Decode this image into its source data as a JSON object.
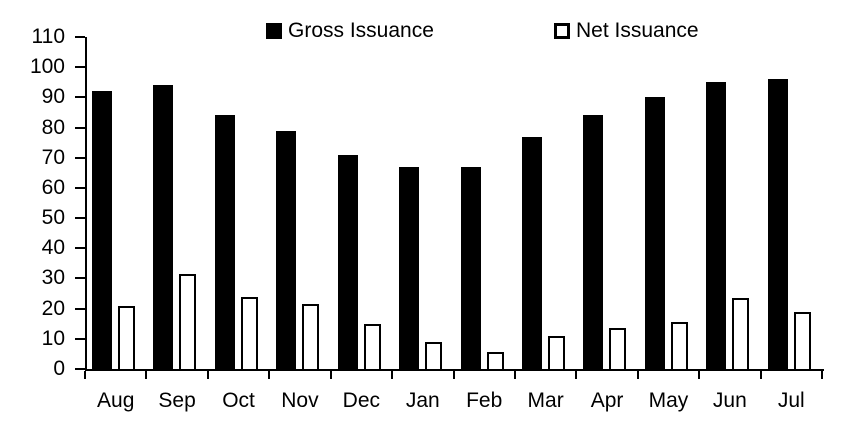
{
  "chart_data": {
    "type": "bar",
    "title": "",
    "xlabel": "",
    "ylabel": "",
    "categories": [
      "Aug",
      "Sep",
      "Oct",
      "Nov",
      "Dec",
      "Jan",
      "Feb",
      "Mar",
      "Apr",
      "May",
      "Jun",
      "Jul"
    ],
    "series": [
      {
        "name": "Gross Issuance",
        "style": "solid",
        "fill_color": "#000000",
        "values": [
          92,
          94,
          84,
          79,
          71,
          67,
          67,
          77,
          84,
          90,
          95,
          96
        ]
      },
      {
        "name": "Net Issuance",
        "style": "outline",
        "fill_color": "#ffffff",
        "border_color": "#000000",
        "values": [
          21,
          31.5,
          24,
          21.5,
          15,
          9,
          5.5,
          11,
          13.5,
          15.5,
          23.5,
          19
        ]
      }
    ],
    "ylim": [
      0,
      110
    ],
    "yticks": [
      0,
      10,
      20,
      30,
      40,
      50,
      60,
      70,
      80,
      90,
      100,
      110
    ],
    "grid": false,
    "legend_position": "top"
  },
  "colors": {
    "background": "#ffffff",
    "text": "#000000",
    "gross_bar": "#000000",
    "net_bar_fill": "#ffffff",
    "net_bar_border": "#000000"
  }
}
